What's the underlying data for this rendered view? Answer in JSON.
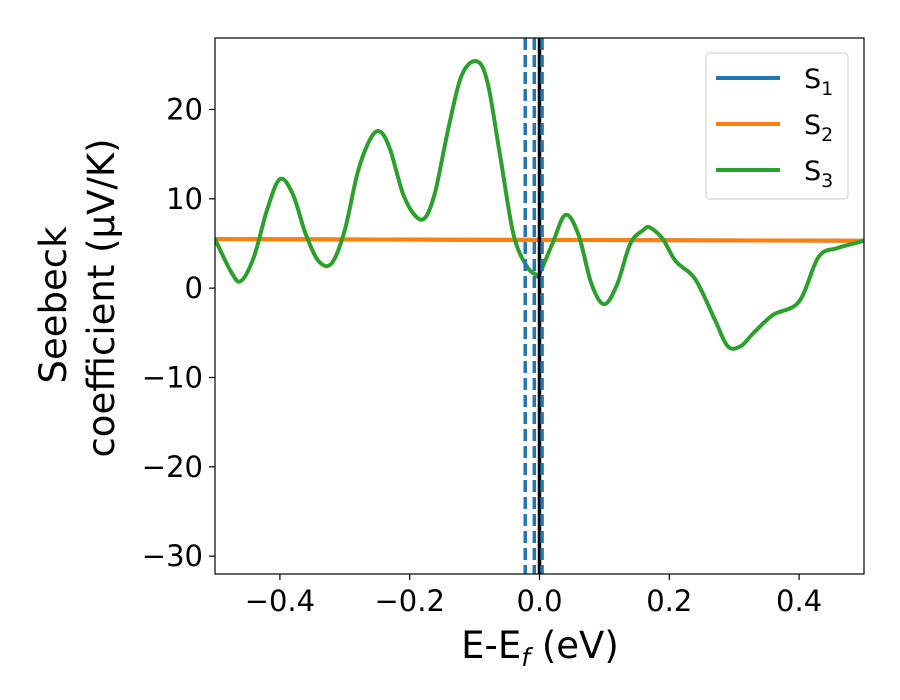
{
  "chart_data": {
    "type": "line",
    "xlabel": "E-E",
    "xlabel_sub": "f",
    "xlabel_unit": " (eV)",
    "ylabel_line1": "Seebeck",
    "ylabel_line2": "coefficient  (μV/K)",
    "xlim": [
      -0.5,
      0.5
    ],
    "ylim": [
      -32,
      28
    ],
    "xticks": [
      -0.4,
      -0.2,
      0.0,
      0.2,
      0.4
    ],
    "xtick_labels": [
      "−0.4",
      "−0.2",
      "0.0",
      "0.2",
      "0.4"
    ],
    "yticks": [
      -30,
      -20,
      -10,
      0,
      10,
      20
    ],
    "ytick_labels": [
      "−30",
      "−20",
      "−10",
      "0",
      "10",
      "20"
    ],
    "grid": false,
    "legend_position": "top-right",
    "series": [
      {
        "name": "S",
        "sub": "1",
        "color": "#1f77b4",
        "x": [
          -0.5,
          0.5
        ],
        "y": [
          5.5,
          5.3
        ]
      },
      {
        "name": "S",
        "sub": "2",
        "color": "#ff7f0e",
        "x": [
          -0.5,
          0.5
        ],
        "y": [
          5.5,
          5.3
        ]
      },
      {
        "name": "S",
        "sub": "3",
        "color": "#2ca02c",
        "x": [
          -0.5,
          -0.475,
          -0.46,
          -0.44,
          -0.42,
          -0.4,
          -0.38,
          -0.36,
          -0.34,
          -0.32,
          -0.3,
          -0.28,
          -0.26,
          -0.245,
          -0.23,
          -0.21,
          -0.19,
          -0.175,
          -0.16,
          -0.14,
          -0.12,
          -0.097,
          -0.08,
          -0.06,
          -0.04,
          -0.02,
          -0.005,
          0.0,
          0.02,
          0.04,
          0.06,
          0.08,
          0.1,
          0.12,
          0.14,
          0.16,
          0.17,
          0.19,
          0.21,
          0.24,
          0.27,
          0.29,
          0.31,
          0.33,
          0.36,
          0.4,
          0.43,
          0.46,
          0.5
        ],
        "y": [
          5.5,
          1.8,
          0.8,
          3.5,
          8.7,
          12.2,
          10.5,
          6.0,
          3.0,
          2.8,
          6.5,
          13.0,
          16.8,
          17.5,
          15.5,
          10.5,
          8.0,
          8.0,
          11.0,
          18.0,
          23.8,
          25.4,
          23.0,
          14.5,
          6.0,
          2.5,
          1.5,
          1.6,
          5.0,
          8.2,
          6.0,
          0.5,
          -1.8,
          0.5,
          5.0,
          6.5,
          6.8,
          5.5,
          3.0,
          1.0,
          -3.5,
          -6.5,
          -6.5,
          -5.0,
          -3.0,
          -1.5,
          3.5,
          4.5,
          5.3
        ]
      }
    ],
    "vertical_lines": [
      {
        "x": -0.022,
        "style": "dashed",
        "color": "#1f77b4"
      },
      {
        "x": -0.008,
        "style": "dashed",
        "color": "#1f77b4"
      },
      {
        "x": 0.0,
        "style": "solid",
        "color": "#000000"
      },
      {
        "x": 0.004,
        "style": "dashed",
        "color": "#1f77b4"
      }
    ]
  }
}
